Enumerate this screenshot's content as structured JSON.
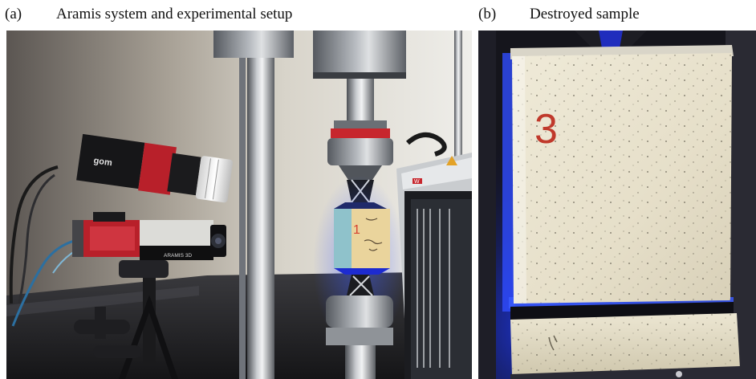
{
  "figure": {
    "panel_a": {
      "tag": "(a)",
      "caption": "Aramis system and experimental setup",
      "camera_brand": "gom",
      "camera_model": "ARAMIS 3D",
      "sample_note": "1",
      "machine_logo": "W"
    },
    "panel_b": {
      "tag": "(b)",
      "caption": "Destroyed sample",
      "sample_number": "3"
    }
  },
  "colors": {
    "camera_red": "#b8202a",
    "led_blue": "#2a4cff",
    "foam": "#e9e4d2",
    "steel": "#8d9197"
  }
}
